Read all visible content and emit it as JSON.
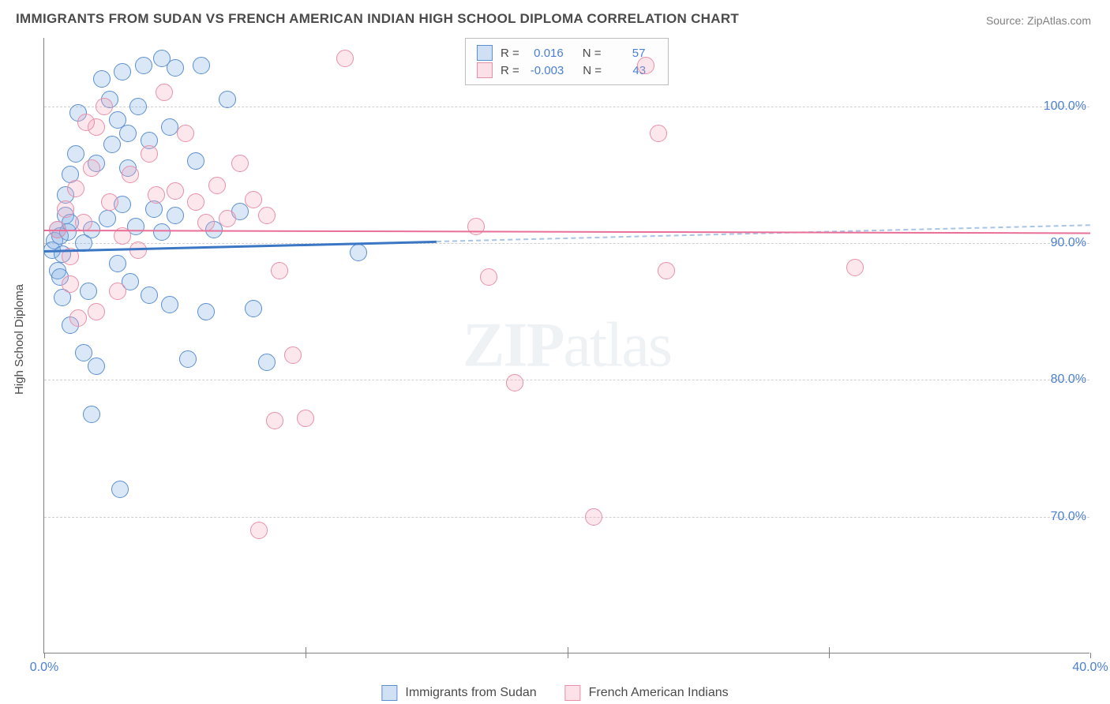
{
  "title": "IMMIGRANTS FROM SUDAN VS FRENCH AMERICAN INDIAN HIGH SCHOOL DIPLOMA CORRELATION CHART",
  "source_label": "Source: ",
  "source_name": "ZipAtlas.com",
  "yaxis_label": "High School Diploma",
  "watermark_bold": "ZIP",
  "watermark_rest": "atlas",
  "chart": {
    "type": "scatter",
    "background_color": "#ffffff",
    "grid_color": "#cfcfcf",
    "axis_color": "#808080",
    "tick_label_color": "#4a7fd1",
    "xlim": [
      0,
      40
    ],
    "ylim": [
      60,
      105
    ],
    "yticks": [
      70,
      80,
      90,
      100
    ],
    "ytick_labels": [
      "70.0%",
      "80.0%",
      "90.0%",
      "100.0%"
    ],
    "xticks": [
      0,
      10,
      20,
      30,
      40
    ],
    "xtick_labels": [
      "0.0%",
      null,
      null,
      null,
      "40.0%"
    ],
    "series": [
      {
        "name": "Immigrants from Sudan",
        "color_fill": "rgba(120,170,225,0.28)",
        "color_stroke": "#5b8fd0",
        "marker_size": 22,
        "r": "0.016",
        "n": "57",
        "trend_start": [
          0,
          89.5
        ],
        "trend_end_solid": [
          15,
          90.2
        ],
        "trend_end_dash": [
          40,
          91.4
        ],
        "points": [
          [
            0.3,
            89.5
          ],
          [
            0.4,
            90.2
          ],
          [
            0.5,
            91.0
          ],
          [
            0.6,
            90.5
          ],
          [
            0.7,
            89.2
          ],
          [
            0.8,
            92.0
          ],
          [
            0.9,
            90.8
          ],
          [
            1.0,
            91.5
          ],
          [
            0.5,
            88.0
          ],
          [
            0.6,
            87.5
          ],
          [
            0.7,
            86.0
          ],
          [
            0.8,
            93.5
          ],
          [
            1.0,
            95.0
          ],
          [
            1.2,
            96.5
          ],
          [
            1.5,
            90.0
          ],
          [
            1.8,
            91.0
          ],
          [
            2.0,
            95.8
          ],
          [
            2.2,
            102.0
          ],
          [
            2.5,
            100.5
          ],
          [
            2.8,
            99.0
          ],
          [
            3.0,
            102.5
          ],
          [
            3.2,
            98.0
          ],
          [
            3.5,
            91.2
          ],
          [
            3.8,
            103.0
          ],
          [
            4.0,
            97.5
          ],
          [
            4.2,
            92.5
          ],
          [
            4.5,
            103.5
          ],
          [
            4.8,
            85.5
          ],
          [
            5.0,
            102.8
          ],
          [
            1.0,
            84.0
          ],
          [
            1.5,
            82.0
          ],
          [
            1.8,
            77.5
          ],
          [
            2.0,
            81.0
          ],
          [
            2.4,
            91.8
          ],
          [
            2.8,
            88.5
          ],
          [
            3.2,
            95.5
          ],
          [
            3.6,
            100.0
          ],
          [
            4.0,
            86.2
          ],
          [
            4.5,
            90.8
          ],
          [
            5.0,
            92.0
          ],
          [
            5.5,
            81.5
          ],
          [
            6.0,
            103.0
          ],
          [
            6.2,
            85.0
          ],
          [
            6.5,
            91.0
          ],
          [
            7.0,
            100.5
          ],
          [
            8.0,
            85.2
          ],
          [
            8.5,
            81.3
          ],
          [
            2.6,
            97.2
          ],
          [
            2.9,
            72.0
          ],
          [
            3.3,
            87.2
          ],
          [
            4.8,
            98.5
          ],
          [
            5.8,
            96.0
          ],
          [
            7.5,
            92.3
          ],
          [
            1.3,
            99.5
          ],
          [
            12.0,
            89.3
          ],
          [
            3.0,
            92.8
          ],
          [
            1.7,
            86.5
          ]
        ]
      },
      {
        "name": "French American Indians",
        "color_fill": "rgba(245,170,190,0.28)",
        "color_stroke": "#e98fa8",
        "marker_size": 22,
        "r": "-0.003",
        "n": "43",
        "trend_start": [
          0,
          91.0
        ],
        "trend_end": [
          40,
          90.8
        ],
        "points": [
          [
            0.5,
            91.0
          ],
          [
            0.8,
            92.5
          ],
          [
            1.0,
            89.0
          ],
          [
            1.2,
            94.0
          ],
          [
            1.5,
            91.5
          ],
          [
            1.8,
            95.5
          ],
          [
            2.0,
            98.5
          ],
          [
            2.3,
            100.0
          ],
          [
            2.5,
            93.0
          ],
          [
            2.8,
            86.5
          ],
          [
            3.0,
            90.5
          ],
          [
            3.3,
            95.0
          ],
          [
            3.6,
            89.5
          ],
          [
            4.0,
            96.5
          ],
          [
            4.3,
            93.5
          ],
          [
            4.6,
            101.0
          ],
          [
            1.0,
            87.0
          ],
          [
            1.3,
            84.5
          ],
          [
            5.0,
            93.8
          ],
          [
            5.4,
            98.0
          ],
          [
            5.8,
            93.0
          ],
          [
            6.2,
            91.5
          ],
          [
            6.6,
            94.2
          ],
          [
            7.0,
            91.8
          ],
          [
            7.5,
            95.8
          ],
          [
            8.0,
            93.2
          ],
          [
            8.5,
            92.0
          ],
          [
            8.8,
            77.0
          ],
          [
            9.0,
            88.0
          ],
          [
            9.5,
            81.8
          ],
          [
            10.0,
            77.2
          ],
          [
            11.5,
            103.5
          ],
          [
            16.5,
            91.2
          ],
          [
            17.0,
            87.5
          ],
          [
            18.0,
            79.8
          ],
          [
            23.0,
            103.0
          ],
          [
            23.5,
            98.0
          ],
          [
            23.8,
            88.0
          ],
          [
            31.0,
            88.2
          ],
          [
            21.0,
            70.0
          ],
          [
            8.2,
            69.0
          ],
          [
            2.0,
            85.0
          ],
          [
            1.6,
            98.8
          ]
        ]
      }
    ]
  },
  "legend_top": {
    "r_label": "R =",
    "n_label": "N ="
  },
  "legend_bottom": {
    "item1": "Immigrants from Sudan",
    "item2": "French American Indians"
  }
}
